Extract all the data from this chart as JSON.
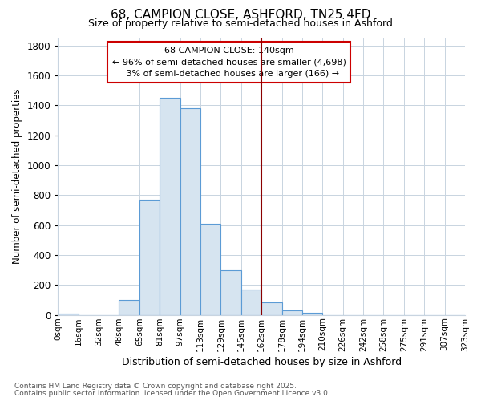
{
  "title": "68, CAMPION CLOSE, ASHFORD, TN25 4FD",
  "subtitle": "Size of property relative to semi-detached houses in Ashford",
  "xlabel": "Distribution of semi-detached houses by size in Ashford",
  "ylabel": "Number of semi-detached properties",
  "bar_color": "#d6e4f0",
  "bar_edge_color": "#5b9bd5",
  "background_color": "#ffffff",
  "grid_color": "#c8d4e0",
  "bin_labels": [
    "0sqm",
    "16sqm",
    "32sqm",
    "48sqm",
    "65sqm",
    "81sqm",
    "97sqm",
    "113sqm",
    "129sqm",
    "145sqm",
    "162sqm",
    "178sqm",
    "194sqm",
    "210sqm",
    "226sqm",
    "242sqm",
    "258sqm",
    "275sqm",
    "291sqm",
    "307sqm",
    "323sqm"
  ],
  "values": [
    10,
    0,
    0,
    100,
    770,
    1450,
    1380,
    610,
    300,
    170,
    85,
    30,
    15,
    0,
    0,
    0,
    0,
    0,
    0,
    0
  ],
  "property_bin_index": 9,
  "property_name": "68 CAMPION CLOSE: 140sqm",
  "pct_smaller": 96,
  "count_smaller": 4698,
  "pct_larger": 3,
  "count_larger": 166,
  "vline_color": "#8b0000",
  "annotation_box_color": "#cc0000",
  "ylim": [
    0,
    1850
  ],
  "yticks": [
    0,
    200,
    400,
    600,
    800,
    1000,
    1200,
    1400,
    1600,
    1800
  ],
  "footnote1": "Contains HM Land Registry data © Crown copyright and database right 2025.",
  "footnote2": "Contains public sector information licensed under the Open Government Licence v3.0."
}
